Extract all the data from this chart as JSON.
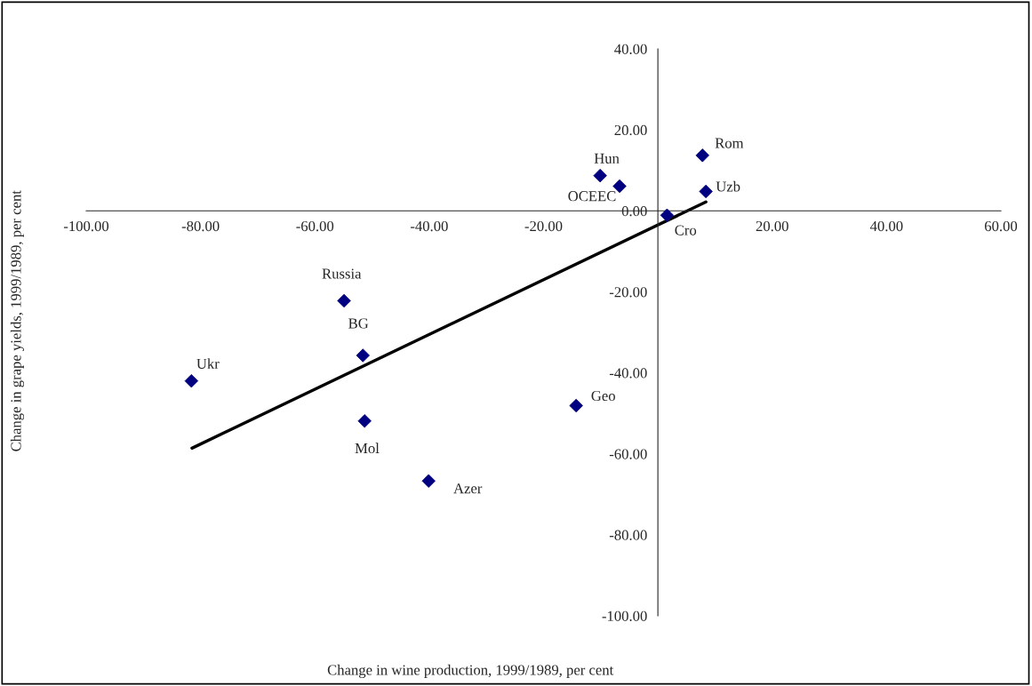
{
  "chart_data": {
    "type": "scatter",
    "xlabel": "Change in wine production, 1999/1989, per cent",
    "ylabel": "Change in grape yields, 1999/1989, per cent",
    "xlim": [
      -100,
      60
    ],
    "ylim": [
      -100,
      40
    ],
    "xticks": [
      {
        "value": -100,
        "label": "-100.00"
      },
      {
        "value": -80,
        "label": "-80.00"
      },
      {
        "value": -60,
        "label": "-60.00"
      },
      {
        "value": -40,
        "label": "-40.00"
      },
      {
        "value": -20,
        "label": "-20.00"
      },
      {
        "value": 0,
        "label": null
      },
      {
        "value": 20,
        "label": "20.00"
      },
      {
        "value": 40,
        "label": "40.00"
      },
      {
        "value": 60,
        "label": "60.00"
      }
    ],
    "yticks": [
      {
        "value": -100,
        "label": "-100.00"
      },
      {
        "value": -80,
        "label": "-80.00"
      },
      {
        "value": -60,
        "label": "-60.00"
      },
      {
        "value": -40,
        "label": "-40.00"
      },
      {
        "value": -20,
        "label": "-20.00"
      },
      {
        "value": 0,
        "label": "0.00"
      },
      {
        "value": 20,
        "label": "20.00"
      },
      {
        "value": 40,
        "label": "40.00"
      }
    ],
    "marker": "diamond",
    "grid": false,
    "legend": false,
    "series": [
      {
        "color": "#000080",
        "x": [
          -10.1,
          -6.7,
          7.8,
          8.4,
          1.6,
          -54.9,
          -51.6,
          -81.6,
          -51.3,
          -40.1,
          -14.3
        ],
        "values": [
          8.7,
          6.1,
          13.7,
          4.8,
          -1.1,
          -22.2,
          -35.7,
          -42.0,
          -51.9,
          -66.7,
          -48.1
        ]
      },
      {
        "type": "line",
        "marker": "none",
        "color": "#000000",
        "x": [
          -81.5,
          8.4
        ],
        "values": [
          -58.6,
          2.2
        ]
      }
    ],
    "annotations": [
      {
        "text": "Hun",
        "x": -10.1,
        "y": 8.7
      },
      {
        "text": "OCEEC",
        "x": -6.7,
        "y": 6.1
      },
      {
        "text": "Rom",
        "x": 7.8,
        "y": 13.7
      },
      {
        "text": "Uzb",
        "x": 8.4,
        "y": 4.8
      },
      {
        "text": "Cro",
        "x": 1.6,
        "y": -1.1
      },
      {
        "text": "Russia",
        "x": -54.9,
        "y": -22.2
      },
      {
        "text": "BG",
        "x": -51.6,
        "y": -35.7
      },
      {
        "text": "Ukr",
        "x": -81.6,
        "y": -42.0
      },
      {
        "text": "Mol",
        "x": -51.3,
        "y": -51.9
      },
      {
        "text": "Azer",
        "x": -40.1,
        "y": -66.7
      },
      {
        "text": "Geo",
        "x": -14.3,
        "y": -48.1
      }
    ]
  }
}
